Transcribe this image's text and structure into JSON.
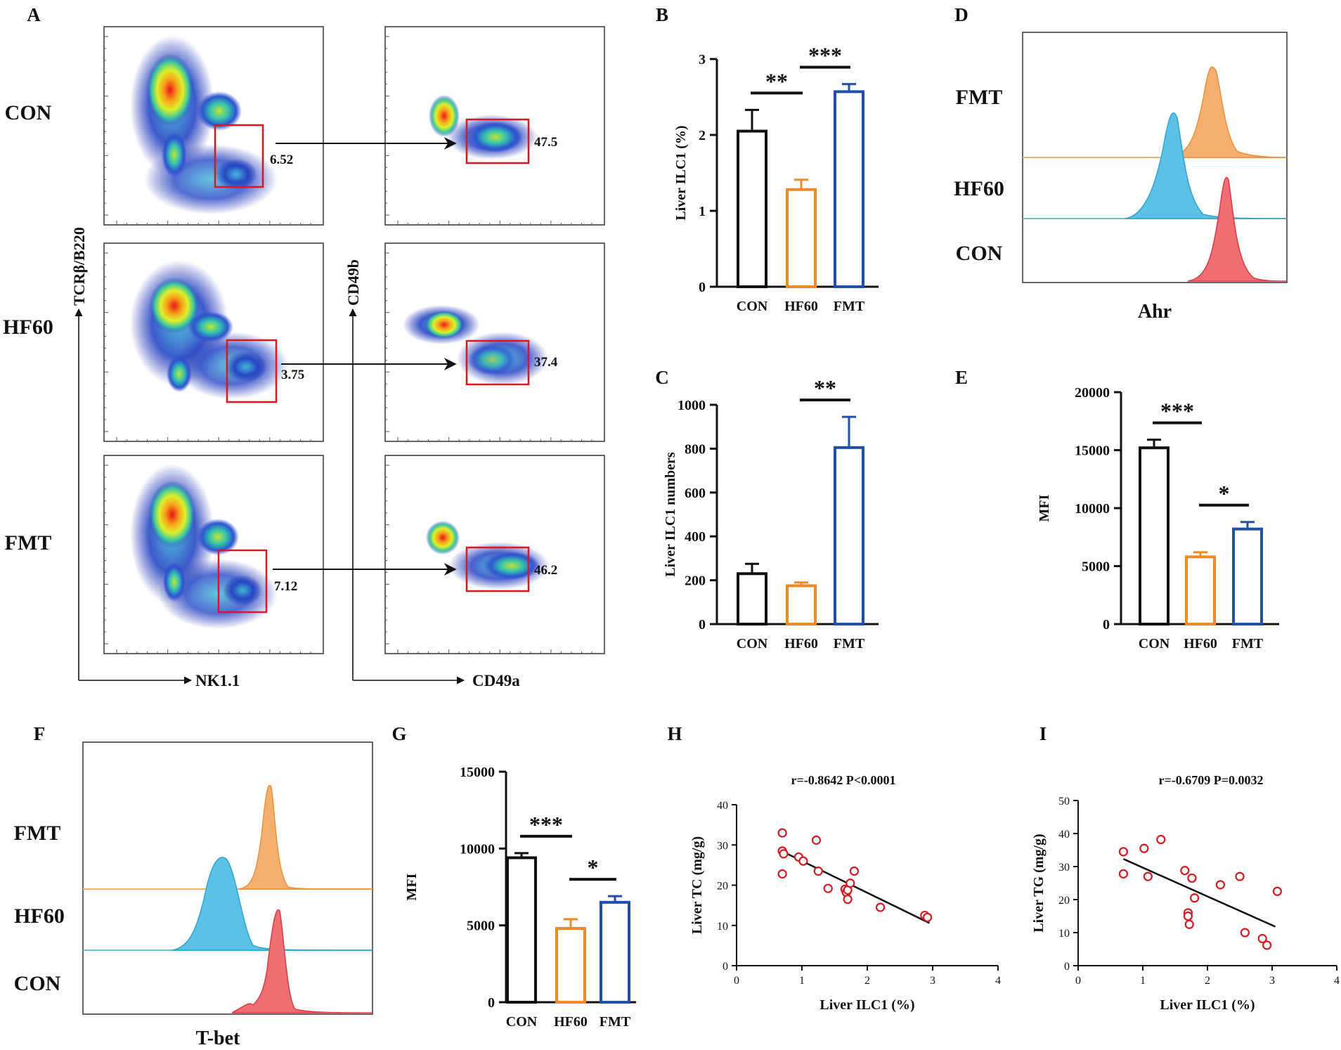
{
  "groups": [
    "CON",
    "HF60",
    "FMT"
  ],
  "colors": {
    "CON": "#111111",
    "HF60": "#f08a24",
    "FMT": "#1f4fa8",
    "gate": "#e1151d",
    "hist_FMT": "#f4b06e",
    "hist_HF60": "#5bc2e6",
    "hist_CON": "#ee6e74",
    "scatter": "#d71920"
  },
  "panel_letters": {
    "A": "A",
    "B": "B",
    "C": "C",
    "D": "D",
    "E": "E",
    "F": "F",
    "G": "G",
    "H": "H",
    "I": "I"
  },
  "panelA": {
    "row_labels": [
      "CON",
      "HF60",
      "FMT"
    ],
    "gate_left_values": [
      "6.52",
      "3.75",
      "7.12"
    ],
    "gate_right_values": [
      "47.5",
      "37.4",
      "46.2"
    ],
    "left_xaxis": "NK1.1",
    "left_yaxis": "TCRβ/B220",
    "right_xaxis": "CD49a",
    "right_yaxis": "CD49b"
  },
  "panelD": {
    "hist_labels": [
      "FMT",
      "HF60",
      "CON"
    ],
    "xlabel": "Ahr"
  },
  "panelF": {
    "hist_labels": [
      "FMT",
      "HF60",
      "CON"
    ],
    "xlabel": "T-bet"
  },
  "chart_data": [
    {
      "id": "B",
      "type": "bar",
      "categories": [
        "CON",
        "HF60",
        "FMT"
      ],
      "values": [
        2.05,
        1.28,
        2.57
      ],
      "errors": [
        0.28,
        0.13,
        0.1
      ],
      "ylabel": "Liver ILC1 (%)",
      "ylim": [
        0,
        3
      ],
      "yticks": [
        "0",
        "1",
        "2",
        "3"
      ],
      "significance": [
        {
          "from": 0,
          "to": 1,
          "label": "**"
        },
        {
          "from": 1,
          "to": 2,
          "label": "***"
        }
      ]
    },
    {
      "id": "C",
      "type": "bar",
      "categories": [
        "CON",
        "HF60",
        "FMT"
      ],
      "values": [
        230,
        175,
        805
      ],
      "errors": [
        45,
        15,
        140
      ],
      "ylabel": "Liver ILC1 numbers",
      "ylim": [
        0,
        1000
      ],
      "yticks": [
        "0",
        "200",
        "400",
        "600",
        "800",
        "1000"
      ],
      "significance": [
        {
          "from": 1,
          "to": 2,
          "label": "**"
        }
      ]
    },
    {
      "id": "E",
      "type": "bar",
      "categories": [
        "CON",
        "HF60",
        "FMT"
      ],
      "values": [
        15200,
        5800,
        8200
      ],
      "errors": [
        700,
        400,
        600
      ],
      "ylabel": "MFI",
      "ylim": [
        0,
        20000
      ],
      "yticks": [
        "0",
        "5000",
        "10000",
        "15000",
        "20000"
      ],
      "significance": [
        {
          "from": 0,
          "to": 1,
          "label": "***"
        },
        {
          "from": 1,
          "to": 2,
          "label": "*"
        }
      ]
    },
    {
      "id": "G",
      "type": "bar",
      "categories": [
        "CON",
        "HF60",
        "FMT"
      ],
      "values": [
        9400,
        4800,
        6500
      ],
      "errors": [
        300,
        600,
        400
      ],
      "ylabel": "MFI",
      "ylim": [
        0,
        15000
      ],
      "yticks": [
        "0",
        "5000",
        "10000",
        "15000"
      ],
      "significance": [
        {
          "from": 0,
          "to": 1,
          "label": "***"
        },
        {
          "from": 1,
          "to": 2,
          "label": "*"
        }
      ]
    },
    {
      "id": "H",
      "type": "scatter",
      "annotation": "r=-0.8642    P<0.0001",
      "xlabel": "Liver ILC1 (%)",
      "ylabel": "Liver TC (mg/g)",
      "xlim": [
        0,
        4
      ],
      "ylim": [
        0,
        40
      ],
      "xticks": [
        "0",
        "1",
        "2",
        "3",
        "4"
      ],
      "yticks": [
        "0",
        "10",
        "20",
        "30",
        "40"
      ],
      "x": [
        0.7,
        0.7,
        0.72,
        0.7,
        0.95,
        1.02,
        1.22,
        1.25,
        1.4,
        1.66,
        1.68,
        1.7,
        1.7,
        1.74,
        1.8,
        2.2,
        2.88,
        2.92
      ],
      "y": [
        33,
        28.5,
        27.8,
        22.8,
        27,
        26,
        31.2,
        23.5,
        19.2,
        19,
        18.2,
        16.5,
        18.8,
        20.5,
        23.5,
        14.5,
        12.5,
        12
      ],
      "fit": [
        [
          0.7,
          28.4
        ],
        [
          2.95,
          10.6
        ]
      ]
    },
    {
      "id": "I",
      "type": "scatter",
      "annotation": "r=-0.6709    P=0.0032",
      "xlabel": "Liver ILC1 (%)",
      "ylabel": "Liver TG (mg/g)",
      "xlim": [
        0,
        4
      ],
      "ylim": [
        0,
        50
      ],
      "xticks": [
        "0",
        "1",
        "2",
        "3",
        "4"
      ],
      "yticks": [
        "0",
        "10",
        "20",
        "30",
        "40",
        "50"
      ],
      "x": [
        0.7,
        0.7,
        1.02,
        1.08,
        1.28,
        1.65,
        1.7,
        1.7,
        1.72,
        1.76,
        1.8,
        2.2,
        2.5,
        2.58,
        2.85,
        2.92,
        3.08
      ],
      "y": [
        34.5,
        27.8,
        35.5,
        27,
        38.2,
        28.8,
        16,
        15,
        12.5,
        26.5,
        20.5,
        24.5,
        27,
        10,
        8.2,
        6.2,
        22.5
      ],
      "fit": [
        [
          0.7,
          32.3
        ],
        [
          3.05,
          11.8
        ]
      ]
    }
  ]
}
